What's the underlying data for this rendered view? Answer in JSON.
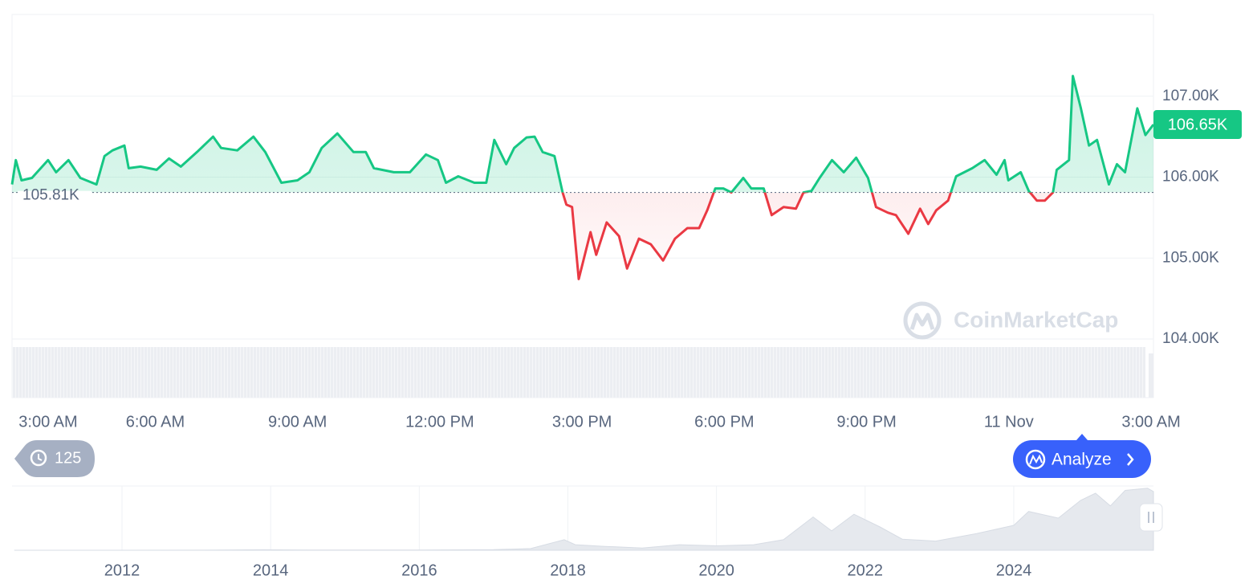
{
  "chart_data": [
    {
      "type": "line",
      "x": [
        2.98,
        3.06,
        3.18,
        3.4,
        3.74,
        3.91,
        4.17,
        4.42,
        4.76,
        4.93,
        5.1,
        5.35,
        5.44,
        5.69,
        6.03,
        6.29,
        6.54,
        6.88,
        7.22,
        7.39,
        7.73,
        8.07,
        8.32,
        8.66,
        9.0,
        9.25,
        9.51,
        9.84,
        10.18,
        10.44,
        10.61,
        11.03,
        11.37,
        11.71,
        11.96,
        12.13,
        12.39,
        12.73,
        12.98,
        13.15,
        13.4,
        13.57,
        13.83,
        14.0,
        14.17,
        14.42,
        14.59,
        14.67,
        14.79,
        14.93,
        15.18,
        15.3,
        15.52,
        15.78,
        15.95,
        16.2,
        16.45,
        16.71,
        16.96,
        17.22,
        17.47,
        17.64,
        17.81,
        17.98,
        18.15,
        18.4,
        18.57,
        18.83,
        19.0,
        19.25,
        19.51,
        19.67,
        19.84,
        20.01,
        20.27,
        20.52,
        20.78,
        21.03,
        21.2,
        21.45,
        21.62,
        21.88,
        22.13,
        22.3,
        22.47,
        22.72,
        22.89,
        23.23,
        23.49,
        23.74,
        23.91,
        23.99,
        24.25,
        24.42,
        24.59,
        24.76,
        24.93,
        25.01,
        25.27,
        25.35,
        25.52,
        25.69,
        25.86,
        26.11,
        26.28,
        26.45,
        26.71,
        26.88,
        27.05
      ],
      "values": [
        105910,
        106210,
        105960,
        105990,
        106210,
        106060,
        106210,
        105990,
        105910,
        106260,
        106330,
        106390,
        106110,
        106130,
        106090,
        106230,
        106130,
        106310,
        106500,
        106360,
        106330,
        106500,
        106310,
        105930,
        105960,
        106060,
        106360,
        106540,
        106310,
        106310,
        106110,
        106060,
        106060,
        106280,
        106210,
        105930,
        106010,
        105930,
        105930,
        106460,
        106160,
        106360,
        106490,
        106500,
        106310,
        106260,
        105810,
        105660,
        105630,
        104740,
        105320,
        105040,
        105440,
        105270,
        104870,
        105240,
        105170,
        104970,
        105240,
        105370,
        105370,
        105590,
        105860,
        105860,
        105810,
        105990,
        105860,
        105860,
        105530,
        105630,
        105610,
        105810,
        105830,
        105990,
        106210,
        106060,
        106240,
        105990,
        105630,
        105560,
        105530,
        105300,
        105610,
        105420,
        105590,
        105710,
        106010,
        106110,
        106210,
        106030,
        106210,
        105960,
        106060,
        105830,
        105710,
        105710,
        105810,
        106090,
        106210,
        107250,
        106850,
        106390,
        106460,
        105910,
        106160,
        106060,
        106850,
        106520,
        106650
      ],
      "color_up": "#16c784",
      "color_down": "#ea3943",
      "baseline": {
        "value": 105810,
        "label": "105.81K"
      },
      "last_price": {
        "value": 106650,
        "label": "106.65K"
      },
      "xlim": [
        2.98,
        27.05
      ],
      "xticks": [
        {
          "value": 3,
          "label": "3:00 AM"
        },
        {
          "value": 6,
          "label": "6:00 AM"
        },
        {
          "value": 9,
          "label": "9:00 AM"
        },
        {
          "value": 12,
          "label": "12:00 PM"
        },
        {
          "value": 15,
          "label": "3:00 PM"
        },
        {
          "value": 18,
          "label": "6:00 PM"
        },
        {
          "value": 21,
          "label": "9:00 PM"
        },
        {
          "value": 24,
          "label": "11 Nov"
        },
        {
          "value": 27,
          "label": "3:00 AM"
        }
      ],
      "ylim": [
        103970,
        108010
      ],
      "yticks": [
        {
          "value": 104000,
          "label": "104.00K"
        },
        {
          "value": 105000,
          "label": "105.00K"
        },
        {
          "value": 106000,
          "label": "106.00K"
        },
        {
          "value": 107000,
          "label": "107.00K"
        }
      ],
      "grid": true
    },
    {
      "type": "area",
      "x": [
        2010.55,
        2012.0,
        2013.0,
        2013.9,
        2014.5,
        2016.0,
        2017.0,
        2017.5,
        2017.95,
        2018.1,
        2018.5,
        2019.0,
        2019.5,
        2020.0,
        2020.5,
        2020.9,
        2021.3,
        2021.55,
        2021.85,
        2022.2,
        2022.5,
        2022.95,
        2023.5,
        2024.0,
        2024.2,
        2024.6,
        2024.9,
        2025.1,
        2025.3,
        2025.5,
        2025.8,
        2025.88
      ],
      "values": [
        0,
        10,
        100,
        800,
        400,
        400,
        1000,
        3000,
        19000,
        10000,
        7000,
        4000,
        10000,
        8000,
        10000,
        19000,
        60000,
        35000,
        65000,
        42000,
        20000,
        16500,
        30000,
        45000,
        70000,
        58000,
        90000,
        103000,
        80000,
        108000,
        112000,
        106000
      ],
      "color": "#e6e9ee",
      "xlim": [
        2010.52,
        2025.88
      ],
      "ylim": [
        0,
        116000
      ],
      "xticks": [
        2012,
        2014,
        2016,
        2018,
        2020,
        2022,
        2024
      ],
      "grid": true
    }
  ],
  "ui": {
    "watermark": "CoinMarketCap",
    "history_count": 125,
    "analyze_button": "Analyze"
  }
}
